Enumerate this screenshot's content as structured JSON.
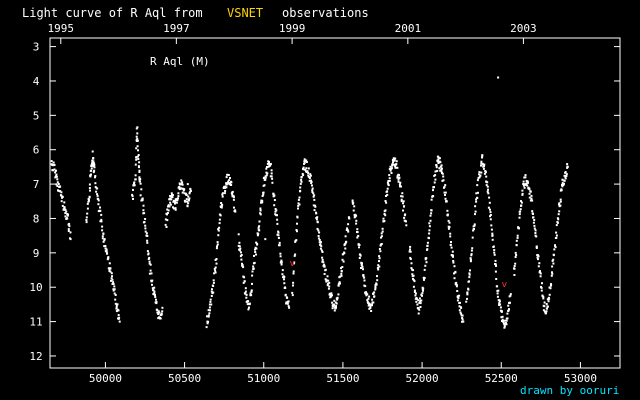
{
  "chart_data": {
    "type": "scatter",
    "title_prefix": "Light curve of R Aql from",
    "title_highlight": "VSNET",
    "title_suffix": "observations",
    "star_label": "R Aql (M)",
    "credit": "drawn by ooruri",
    "x_unit": "JD - 2400000",
    "xlim": [
      49650,
      53250
    ],
    "ylim": [
      2.75,
      12.35
    ],
    "y_inverted": true,
    "x_ticks": [
      50000,
      50500,
      51000,
      51500,
      52000,
      52500,
      53000
    ],
    "x_tick_labels": [
      "50000",
      "50500",
      "51000",
      "51500",
      "52000",
      "52500",
      "53000"
    ],
    "y_ticks": [
      3,
      4,
      5,
      6,
      7,
      8,
      9,
      10,
      11,
      12
    ],
    "y_tick_labels": [
      "3",
      "4",
      "5",
      "6",
      "7",
      "8",
      "9",
      "10",
      "11",
      "12"
    ],
    "year_labels": [
      {
        "label": "1995",
        "x": 49718
      },
      {
        "label": "1997",
        "x": 50448
      },
      {
        "label": "1999",
        "x": 51179
      },
      {
        "label": "2001",
        "x": 51910
      },
      {
        "label": "2003",
        "x": 52640
      }
    ],
    "colors": {
      "background": "#000000",
      "frame": "#ffffff",
      "points": "#ffffff",
      "highlight": "#ffd400",
      "credit": "#00e5ff",
      "outlier": "#ff3030"
    },
    "outliers": [
      {
        "x": 51180,
        "y": 9.3
      },
      {
        "x": 52520,
        "y": 9.9
      }
    ],
    "segments": [
      {
        "x": [
          49660,
          49680,
          49700,
          49720,
          49740,
          49760,
          49780
        ],
        "y": [
          6.4,
          6.6,
          7.0,
          7.3,
          7.7,
          7.9,
          8.6
        ]
      },
      {
        "x": [
          49880,
          49900,
          49910,
          49920,
          49930,
          49950,
          49970,
          49990,
          50010,
          50030,
          50050,
          50070,
          50090
        ],
        "y": [
          8.2,
          7.3,
          6.5,
          6.2,
          6.6,
          7.4,
          8.0,
          8.6,
          9.0,
          9.5,
          10.0,
          10.5,
          11.0
        ]
      },
      {
        "x": [
          50170,
          50190,
          50200,
          50210,
          50220,
          50240,
          50260,
          50280,
          50300,
          50320,
          50340,
          50360
        ],
        "y": [
          7.4,
          6.8,
          5.4,
          6.4,
          7.0,
          7.8,
          8.5,
          9.4,
          10.0,
          10.5,
          10.9,
          10.6
        ]
      },
      {
        "x": [
          50380,
          50400,
          50420,
          50440,
          50460,
          50480,
          50500,
          50520,
          50540
        ],
        "y": [
          8.2,
          7.6,
          7.4,
          7.7,
          7.2,
          7.0,
          7.3,
          7.6,
          7.2
        ]
      },
      {
        "x": [
          50640,
          50660,
          50680,
          50700,
          50720,
          50740,
          50760,
          50780,
          50800,
          50820
        ],
        "y": [
          11.0,
          10.6,
          10.0,
          9.2,
          8.0,
          7.4,
          7.0,
          6.8,
          7.2,
          7.8
        ]
      },
      {
        "x": [
          50840,
          50860,
          50880,
          50900,
          50920,
          50940,
          50960,
          50980,
          51000,
          51020,
          51040,
          51060,
          51080,
          51100,
          51120,
          51140,
          51160
        ],
        "y": [
          8.6,
          9.2,
          10.0,
          10.6,
          10.2,
          9.2,
          8.6,
          7.8,
          7.0,
          6.6,
          6.4,
          7.2,
          8.0,
          8.8,
          9.6,
          10.3,
          10.6
        ]
      },
      {
        "x": [
          51180,
          51200,
          51220,
          51240,
          51260,
          51280,
          51300,
          51320,
          51340,
          51360,
          51380,
          51400,
          51420,
          51440,
          51460,
          51480,
          51500,
          51520,
          51540
        ],
        "y": [
          10.2,
          8.8,
          7.6,
          6.8,
          6.4,
          6.6,
          7.0,
          7.6,
          8.2,
          8.8,
          9.4,
          9.8,
          10.2,
          10.6,
          10.4,
          9.8,
          9.2,
          8.6,
          8.0
        ]
      },
      {
        "x": [
          51560,
          51580,
          51600,
          51620,
          51640,
          51660,
          51680,
          51700,
          51720,
          51740,
          51760,
          51780,
          51800,
          51820,
          51840,
          51860,
          51880,
          51900
        ],
        "y": [
          7.4,
          8.0,
          8.8,
          9.4,
          10.0,
          10.4,
          10.6,
          10.2,
          9.6,
          8.8,
          8.0,
          7.2,
          6.6,
          6.3,
          6.5,
          7.0,
          7.6,
          8.2
        ]
      },
      {
        "x": [
          51920,
          51940,
          51960,
          51980,
          52000,
          52020,
          52040,
          52060,
          52080,
          52100,
          52120,
          52140,
          52160,
          52180,
          52200,
          52220,
          52240,
          52260
        ],
        "y": [
          8.8,
          9.6,
          10.2,
          10.6,
          10.2,
          9.4,
          8.6,
          7.6,
          6.8,
          6.3,
          6.5,
          7.0,
          7.8,
          8.6,
          9.4,
          10.0,
          10.6,
          11.0
        ]
      },
      {
        "x": [
          52280,
          52300,
          52320,
          52340,
          52360,
          52380,
          52400,
          52420,
          52440,
          52460,
          52480,
          52500,
          52520,
          52540,
          52560
        ],
        "y": [
          10.4,
          9.6,
          8.6,
          7.6,
          6.8,
          6.3,
          6.6,
          7.4,
          8.2,
          9.2,
          10.2,
          10.8,
          11.2,
          10.8,
          10.2
        ]
      },
      {
        "x": [
          52580,
          52600,
          52620,
          52640,
          52660,
          52680,
          52700,
          52720,
          52740,
          52760,
          52780,
          52800,
          52820,
          52840,
          52860,
          52880,
          52900,
          52920
        ],
        "y": [
          9.6,
          8.6,
          7.8,
          7.0,
          6.8,
          7.2,
          7.8,
          8.6,
          9.4,
          10.2,
          10.8,
          10.4,
          9.6,
          8.8,
          8.0,
          7.2,
          6.8,
          6.5
        ]
      }
    ],
    "isolated": [
      {
        "x": 52480,
        "y": 3.9
      },
      {
        "x": 52100,
        "y": 6.2
      },
      {
        "x": 50520,
        "y": 7.0
      },
      {
        "x": 51010,
        "y": 8.6
      }
    ]
  }
}
